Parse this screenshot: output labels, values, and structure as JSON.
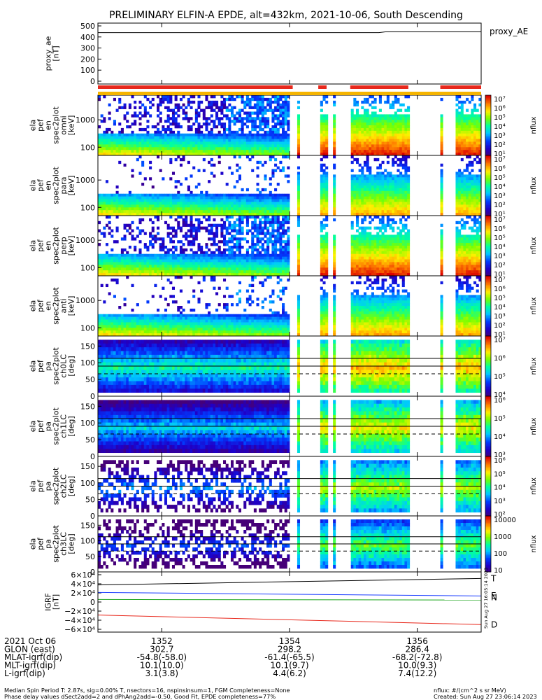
{
  "title": "PRELIMINARY ELFIN-A EPDE, alt=432km, 2021-10-06, South Descending",
  "colors": {
    "fill_bar": "#e8281c",
    "completeness_bar": "#f5b400",
    "igrf_t": "#000000",
    "igrf_n": "#1a3cff",
    "igrf_e": "#1aa51a",
    "igrf_d": "#e8281c"
  },
  "side_stamp": "Sun Aug 27 16:05:14 2023",
  "chart_data": [
    {
      "type": "line",
      "ylabel": "proxy_ae\n[nT]",
      "yticks": [
        "500",
        "400",
        "300",
        "200",
        "100",
        "0"
      ],
      "ylim": [
        0,
        500
      ],
      "series": [
        {
          "name": "proxy_AE",
          "x": [
            1351.0,
            1355.4,
            1355.5,
            1357.0
          ],
          "y": [
            422,
            422,
            428,
            428
          ]
        }
      ]
    },
    {
      "type": "heatmap",
      "ylabel": "ela\npef\nen\nspec2plot\nomni\n[keV]",
      "yticks": [
        "1000",
        "100"
      ],
      "ylog": true,
      "zlabel": "nflux",
      "zticks": [
        "10⁷",
        "10⁶",
        "10⁵",
        "10⁴",
        "10³",
        "10²",
        "10¹"
      ]
    },
    {
      "type": "heatmap",
      "ylabel": "ela\npef\nen\nspec2plot\npara\n[keV]",
      "yticks": [
        "1000",
        "100"
      ],
      "ylog": true,
      "zlabel": "nflux",
      "zticks": [
        "10⁷",
        "10⁶",
        "10⁵",
        "10⁴",
        "10³",
        "10²",
        "10¹"
      ]
    },
    {
      "type": "heatmap",
      "ylabel": "ela\npef\nen\nspec2plot\nperp\n[keV]",
      "yticks": [
        "1000",
        "100"
      ],
      "ylog": true,
      "zlabel": "nflux",
      "zticks": [
        "10⁷",
        "10⁶",
        "10⁵",
        "10⁴",
        "10³",
        "10²",
        "10¹"
      ]
    },
    {
      "type": "heatmap",
      "ylabel": "ela\npef\nen\nspec2plot\nanti\n[keV]",
      "yticks": [
        "1000",
        "100"
      ],
      "ylog": true,
      "zlabel": "nflux",
      "zticks": [
        "10⁷",
        "10⁶",
        "10⁵",
        "10⁴",
        "10³",
        "10²",
        "10¹"
      ]
    },
    {
      "type": "heatmap",
      "ylabel": "ela\npef\npa\nspec2plot\nch0LC\n[deg]",
      "yticks": [
        "150",
        "100",
        "50",
        "0"
      ],
      "ylim": [
        0,
        180
      ],
      "zlabel": "nflux",
      "zticks": [
        "10⁷",
        "10⁶",
        "10⁵",
        "10⁴"
      ],
      "loss_cone_deg": 67,
      "anti_loss_cone_deg": 113
    },
    {
      "type": "heatmap",
      "ylabel": "ela\npef\npa\nspec2plot\nch1LC\n[deg]",
      "yticks": [
        "150",
        "100",
        "50",
        "0"
      ],
      "ylim": [
        0,
        180
      ],
      "zlabel": "nflux",
      "zticks": [
        "10⁶",
        "10⁵",
        "10⁴",
        "10³"
      ],
      "loss_cone_deg": 67,
      "anti_loss_cone_deg": 113
    },
    {
      "type": "heatmap",
      "ylabel": "ela\npef\npa\nspec2plot\nch2LC\n[deg]",
      "yticks": [
        "150",
        "100",
        "50",
        "0"
      ],
      "ylim": [
        0,
        180
      ],
      "zlabel": "nflux",
      "zticks": [
        "10⁶",
        "10⁵",
        "10⁴",
        "10³",
        "10²"
      ],
      "loss_cone_deg": 67,
      "anti_loss_cone_deg": 113
    },
    {
      "type": "heatmap",
      "ylabel": "ela\npef\npa\nspec2plot\nch3LC\n[deg]",
      "yticks": [
        "150",
        "100",
        "50",
        "0"
      ],
      "ylim": [
        0,
        180
      ],
      "zlabel": "nflux",
      "zticks": [
        "10000",
        "1000",
        "100",
        "10"
      ],
      "loss_cone_deg": 67,
      "anti_loss_cone_deg": 113
    },
    {
      "type": "line",
      "ylabel": "IGRF\n[nT]",
      "yticks": [
        "6×10⁴",
        "4×10⁴",
        "2×10⁴",
        "0",
        "−2×10⁴",
        "−4×10⁴",
        "−6×10⁴"
      ],
      "ylim": [
        -60000,
        60000
      ],
      "series": [
        {
          "name": "T",
          "x": [
            1351.0,
            1357.0
          ],
          "y": [
            34000,
            47000
          ]
        },
        {
          "name": "N",
          "x": [
            1351.0,
            1357.0
          ],
          "y": [
            19000,
            12000
          ]
        },
        {
          "name": "E",
          "x": [
            1351.0,
            1357.0
          ],
          "y": [
            5000,
            4000
          ]
        },
        {
          "name": "D",
          "x": [
            1351.0,
            1357.0
          ],
          "y": [
            -26000,
            -45000
          ]
        }
      ]
    }
  ],
  "xaxis": {
    "rows": [
      {
        "label": "2021 Oct 06",
        "values": [
          "1352",
          "1354",
          "1356"
        ]
      },
      {
        "label": "GLON (east)",
        "values": [
          "302.7",
          "298.2",
          "286.4"
        ]
      },
      {
        "label": "MLAT-igrf(dip)",
        "values": [
          "-54.8(-58.0)",
          "-61.4(-65.5)",
          "-68.2(-72.8)"
        ]
      },
      {
        "label": "MLT-igrf(dip)",
        "values": [
          "10.1(10.0)",
          "10.1(9.7)",
          "10.0(9.3)"
        ]
      },
      {
        "label": "L-igrf(dip)",
        "values": [
          "3.1(3.8)",
          "4.4(6.2)",
          "7.4(12.2)"
        ]
      }
    ],
    "tick_times": [
      1352,
      1354,
      1356
    ],
    "range": [
      1351.0,
      1357.0
    ]
  },
  "footer": {
    "line1": "Median Spin Period T: 2.87s, sig=0.00% T, nsectors=16, nspinsinsum=1, FGM Completeness=None",
    "line2": "Phase delay values dSect2add=2 and dPhAng2add=-0.50, Good Fit, EPDE completeness=77%",
    "units": "nflux: #/(cm^2 s sr MeV)",
    "created": "Created: Sun Aug 27 23:06:14 2023"
  }
}
